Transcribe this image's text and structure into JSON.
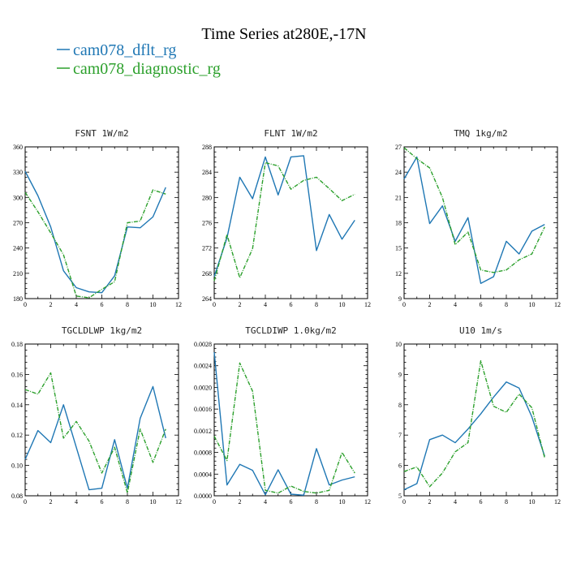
{
  "figure": {
    "title": "Time Series at280E,-17N",
    "legend": [
      {
        "label": "cam078_dflt_rg",
        "color": "#1f77b4",
        "dash": "solid"
      },
      {
        "label": "cam078_diagnostic_rg",
        "color": "#2ca02c",
        "dash": "dashed"
      }
    ]
  },
  "chart_data": [
    {
      "type": "line",
      "title": "FSNT   1W/m2",
      "x": [
        0,
        1,
        2,
        3,
        4,
        5,
        6,
        7,
        8,
        9,
        10,
        11
      ],
      "xlim": [
        0,
        12
      ],
      "xticks": [
        0,
        2,
        4,
        6,
        8,
        10,
        12
      ],
      "ylim": [
        180,
        360
      ],
      "yticks": [
        180,
        210,
        240,
        270,
        300,
        330,
        360
      ],
      "ytick_labels": [
        "180",
        "210",
        "240",
        "270",
        "300",
        "330",
        "360"
      ],
      "series": [
        {
          "color": "#1f77b4",
          "dash": "solid",
          "values": [
            331,
            302,
            265,
            213,
            193,
            188,
            187,
            207,
            265,
            264,
            277,
            312
          ]
        },
        {
          "color": "#2ca02c",
          "dash": "dashed",
          "values": [
            306,
            283,
            258,
            232,
            183,
            181,
            191,
            200,
            270,
            272,
            309,
            304
          ]
        }
      ]
    },
    {
      "type": "line",
      "title": "FLNT   1W/m2",
      "x": [
        0,
        1,
        2,
        3,
        4,
        5,
        6,
        7,
        8,
        9,
        10,
        11
      ],
      "xlim": [
        0,
        12
      ],
      "xticks": [
        0,
        2,
        4,
        6,
        8,
        10,
        12
      ],
      "ylim": [
        264,
        288
      ],
      "yticks": [
        264,
        268,
        272,
        276,
        280,
        284,
        288
      ],
      "ytick_labels": [
        "264",
        "268",
        "272",
        "276",
        "280",
        "284",
        "288"
      ],
      "series": [
        {
          "color": "#1f77b4",
          "dash": "solid",
          "values": [
            267.5,
            273.6,
            283.2,
            279.8,
            286.4,
            280.4,
            286.4,
            286.6,
            271.6,
            277.3,
            273.4,
            276.4
          ]
        },
        {
          "color": "#2ca02c",
          "dash": "dashed",
          "values": [
            266.8,
            274.1,
            267.3,
            271.9,
            285.5,
            285.0,
            281.3,
            282.7,
            283.2,
            281.4,
            279.5,
            280.5
          ]
        }
      ]
    },
    {
      "type": "line",
      "title": "TMQ   1kg/m2",
      "x": [
        0,
        1,
        2,
        3,
        4,
        5,
        6,
        7,
        8,
        9,
        10,
        11
      ],
      "xlim": [
        0,
        12
      ],
      "xticks": [
        0,
        2,
        4,
        6,
        8,
        10,
        12
      ],
      "ylim": [
        9,
        27
      ],
      "yticks": [
        9,
        12,
        15,
        18,
        21,
        24,
        27
      ],
      "ytick_labels": [
        "9",
        "12",
        "15",
        "18",
        "21",
        "24",
        "27"
      ],
      "series": [
        {
          "color": "#1f77b4",
          "dash": "solid",
          "values": [
            23.2,
            25.8,
            17.9,
            20.0,
            15.8,
            18.6,
            10.8,
            11.6,
            15.8,
            14.3,
            17.0,
            17.8
          ]
        },
        {
          "color": "#2ca02c",
          "dash": "dashed",
          "values": [
            26.9,
            25.6,
            24.5,
            21.0,
            15.4,
            16.9,
            12.4,
            12.1,
            12.4,
            13.6,
            14.3,
            17.5
          ]
        }
      ]
    },
    {
      "type": "line",
      "title": "TGCLDLWP   1kg/m2",
      "x": [
        0,
        1,
        2,
        3,
        4,
        5,
        6,
        7,
        8,
        9,
        10,
        11
      ],
      "xlim": [
        0,
        12
      ],
      "xticks": [
        0,
        2,
        4,
        6,
        8,
        10,
        12
      ],
      "ylim": [
        0.08,
        0.18
      ],
      "yticks": [
        0.08,
        0.1,
        0.12,
        0.14,
        0.16,
        0.18
      ],
      "ytick_labels": [
        "0.08",
        "0.10",
        "0.12",
        "0.14",
        "0.16",
        "0.18"
      ],
      "series": [
        {
          "color": "#1f77b4",
          "dash": "solid",
          "values": [
            0.104,
            0.123,
            0.115,
            0.14,
            0.112,
            0.084,
            0.085,
            0.117,
            0.085,
            0.131,
            0.152,
            0.118
          ]
        },
        {
          "color": "#2ca02c",
          "dash": "dashed",
          "values": [
            0.15,
            0.147,
            0.161,
            0.118,
            0.129,
            0.116,
            0.095,
            0.112,
            0.082,
            0.124,
            0.102,
            0.124
          ]
        }
      ]
    },
    {
      "type": "line",
      "title": "TGCLDIWP   1.0kg/m2",
      "x": [
        0,
        1,
        2,
        3,
        4,
        5,
        6,
        7,
        8,
        9,
        10,
        11
      ],
      "xlim": [
        0,
        12
      ],
      "xticks": [
        0,
        2,
        4,
        6,
        8,
        10,
        12
      ],
      "ylim": [
        0.0,
        0.0028
      ],
      "yticks": [
        0.0,
        0.0004,
        0.0008,
        0.0012,
        0.0016,
        0.002,
        0.0024,
        0.0028
      ],
      "ytick_labels": [
        "0.0000",
        "0.0004",
        "0.0008",
        "0.0012",
        "0.0016",
        "0.0020",
        "0.0024",
        "0.0028"
      ],
      "series": [
        {
          "color": "#1f77b4",
          "dash": "solid",
          "values": [
            0.00265,
            0.0002,
            0.00058,
            0.00047,
            2e-05,
            0.00048,
            3e-05,
            1e-05,
            0.00087,
            0.0002,
            0.00029,
            0.00035
          ]
        },
        {
          "color": "#2ca02c",
          "dash": "dashed",
          "values": [
            0.0011,
            0.00065,
            0.00245,
            0.00193,
            0.0001,
            5e-05,
            0.00018,
            8e-05,
            5e-05,
            0.0001,
            0.0008,
            0.00042
          ]
        }
      ]
    },
    {
      "type": "line",
      "title": "U10   1m/s",
      "x": [
        0,
        1,
        2,
        3,
        4,
        5,
        6,
        7,
        8,
        9,
        10,
        11
      ],
      "xlim": [
        0,
        12
      ],
      "xticks": [
        0,
        2,
        4,
        6,
        8,
        10,
        12
      ],
      "ylim": [
        5,
        10
      ],
      "yticks": [
        5,
        6,
        7,
        8,
        9,
        10
      ],
      "ytick_labels": [
        "5",
        "6",
        "7",
        "8",
        "9",
        "10"
      ],
      "series": [
        {
          "color": "#1f77b4",
          "dash": "solid",
          "values": [
            5.2,
            5.4,
            6.85,
            7.0,
            6.75,
            7.2,
            7.7,
            8.25,
            8.75,
            8.55,
            7.6,
            6.3
          ]
        },
        {
          "color": "#2ca02c",
          "dash": "dashed",
          "values": [
            5.8,
            5.95,
            5.3,
            5.75,
            6.45,
            6.75,
            9.45,
            7.95,
            7.75,
            8.35,
            7.9,
            6.25
          ]
        }
      ]
    }
  ]
}
